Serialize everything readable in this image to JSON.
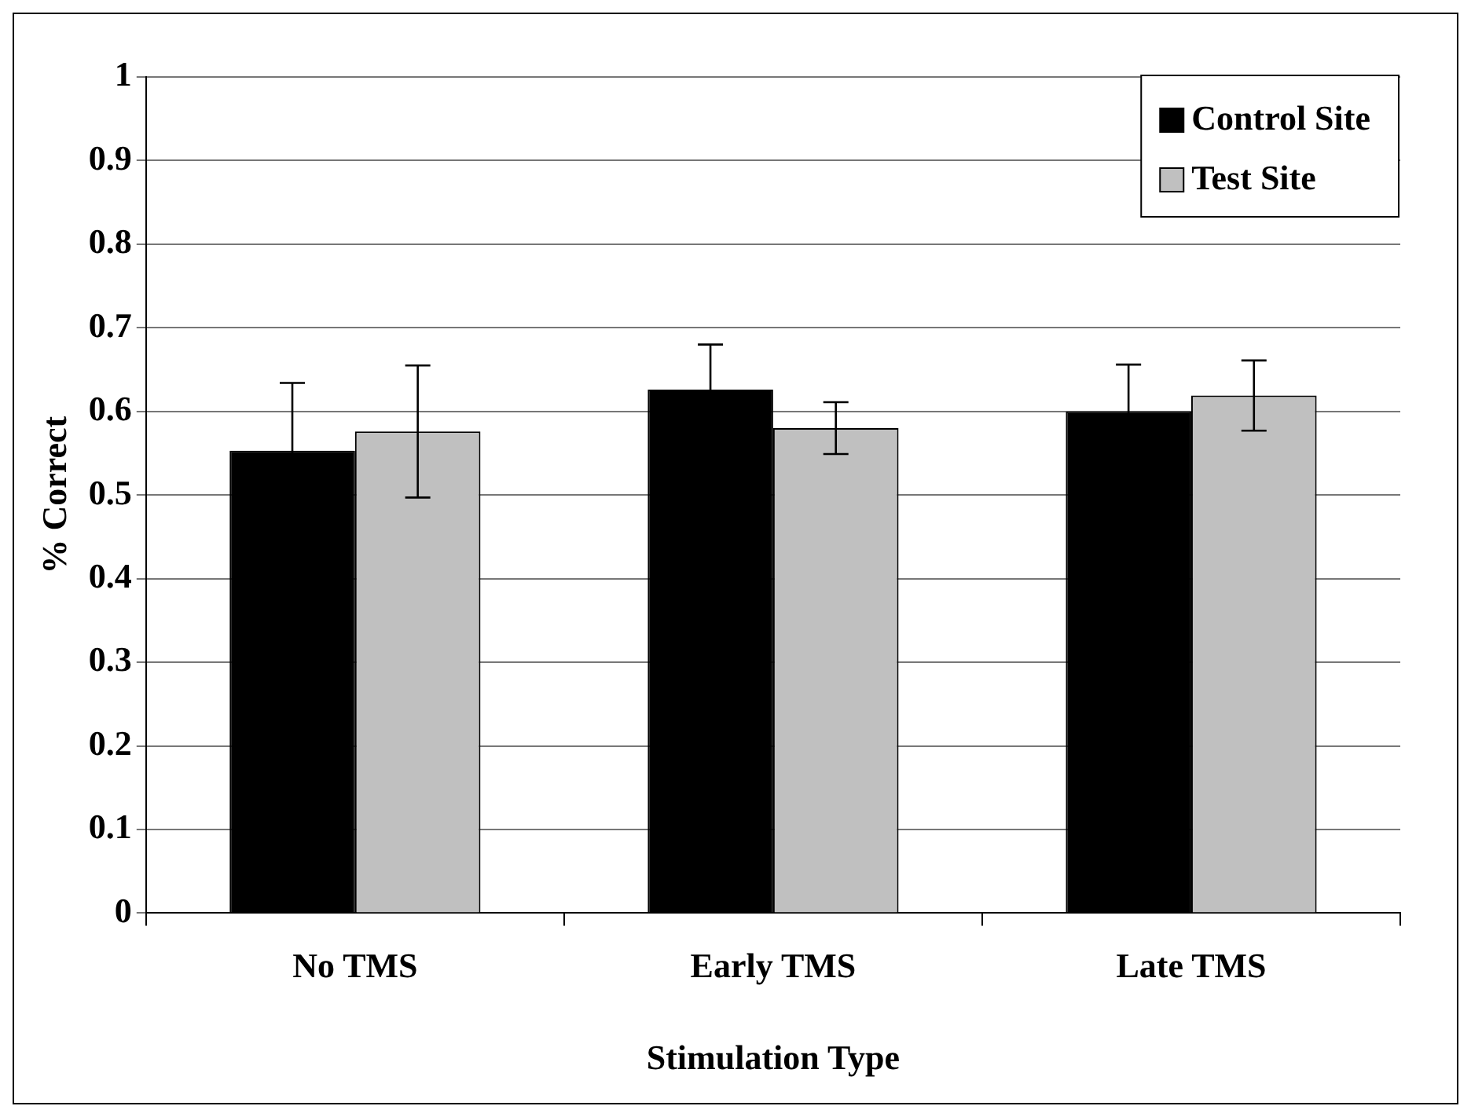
{
  "chart_data": {
    "type": "bar",
    "xlabel": "Stimulation Type",
    "ylabel": "% Correct",
    "categories": [
      "No TMS",
      "Early TMS",
      "Late TMS"
    ],
    "series": [
      {
        "name": "Control Site",
        "color": "#000000",
        "values": [
          0.553,
          0.626,
          0.6
        ],
        "errors": [
          0.081,
          0.054,
          0.056
        ]
      },
      {
        "name": "Test Site",
        "color": "#c0c0c0",
        "values": [
          0.576,
          0.58,
          0.619
        ],
        "errors": [
          0.079,
          0.031,
          0.042
        ]
      }
    ],
    "ylim": [
      0,
      1
    ],
    "yticks": [
      0,
      0.1,
      0.2,
      0.3,
      0.4,
      0.5,
      0.6,
      0.7,
      0.8,
      0.9,
      1
    ],
    "grid": "y",
    "legend": "top right"
  }
}
